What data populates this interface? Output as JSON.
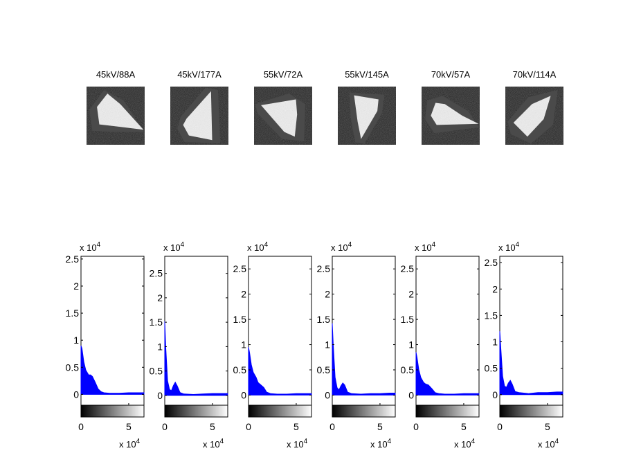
{
  "figure": {
    "panel_titles": [
      "45kV/88A",
      "45kV/177A",
      "55kV/72A",
      "55kV/145A",
      "70kV/57A",
      "70kV/114A"
    ],
    "images": [
      {
        "name": "ct-slice-45kv-88a",
        "polygon": [
          [
            0.18,
            0.35
          ],
          [
            0.36,
            0.12
          ],
          [
            0.58,
            0.3
          ],
          [
            0.98,
            0.74
          ],
          [
            0.48,
            0.68
          ],
          [
            0.22,
            0.65
          ]
        ],
        "halo": [
          [
            0.05,
            0.4
          ],
          [
            0.3,
            0.06
          ],
          [
            0.64,
            0.24
          ],
          [
            0.99,
            0.78
          ],
          [
            0.44,
            0.78
          ],
          [
            0.1,
            0.76
          ]
        ]
      },
      {
        "name": "ct-slice-45kv-177a",
        "polygon": [
          [
            0.28,
            0.55
          ],
          [
            0.7,
            0.08
          ],
          [
            0.72,
            0.92
          ],
          [
            0.32,
            0.84
          ],
          [
            0.22,
            0.66
          ]
        ],
        "halo": [
          [
            0.18,
            0.52
          ],
          [
            0.6,
            0.02
          ],
          [
            0.82,
            0.06
          ],
          [
            0.86,
            0.98
          ],
          [
            0.24,
            0.95
          ],
          [
            0.12,
            0.72
          ]
        ]
      },
      {
        "name": "ct-slice-55kv-72a",
        "polygon": [
          [
            0.12,
            0.32
          ],
          [
            0.72,
            0.22
          ],
          [
            0.74,
            0.48
          ],
          [
            0.7,
            0.86
          ],
          [
            0.52,
            0.78
          ]
        ],
        "halo": [
          [
            0.02,
            0.3
          ],
          [
            0.6,
            0.12
          ],
          [
            0.88,
            0.3
          ],
          [
            0.86,
            0.94
          ],
          [
            0.48,
            0.9
          ],
          [
            0.06,
            0.46
          ]
        ]
      },
      {
        "name": "ct-slice-55kv-145a",
        "polygon": [
          [
            0.28,
            0.15
          ],
          [
            0.7,
            0.22
          ],
          [
            0.68,
            0.42
          ],
          [
            0.4,
            0.9
          ],
          [
            0.34,
            0.6
          ]
        ],
        "halo": [
          [
            0.2,
            0.1
          ],
          [
            0.8,
            0.14
          ],
          [
            0.76,
            0.46
          ],
          [
            0.46,
            0.98
          ],
          [
            0.3,
            0.96
          ],
          [
            0.22,
            0.52
          ]
        ]
      },
      {
        "name": "ct-slice-70kv-57a",
        "polygon": [
          [
            0.24,
            0.28
          ],
          [
            0.4,
            0.3
          ],
          [
            0.7,
            0.5
          ],
          [
            0.98,
            0.64
          ],
          [
            0.26,
            0.66
          ],
          [
            0.16,
            0.5
          ]
        ],
        "halo": [
          [
            0.1,
            0.24
          ],
          [
            0.36,
            0.16
          ],
          [
            0.8,
            0.42
          ],
          [
            0.99,
            0.7
          ],
          [
            0.22,
            0.8
          ],
          [
            0.06,
            0.56
          ]
        ]
      },
      {
        "name": "ct-slice-70kv-114a",
        "polygon": [
          [
            0.14,
            0.62
          ],
          [
            0.46,
            0.3
          ],
          [
            0.78,
            0.16
          ],
          [
            0.66,
            0.56
          ],
          [
            0.38,
            0.86
          ]
        ],
        "halo": [
          [
            0.04,
            0.6
          ],
          [
            0.4,
            0.18
          ],
          [
            0.9,
            0.06
          ],
          [
            0.82,
            0.66
          ],
          [
            0.44,
            0.98
          ],
          [
            0.1,
            0.82
          ]
        ]
      }
    ]
  },
  "chart_data": {
    "type": "area",
    "x_exponent_label": "x 10",
    "y_exponent_label": "x 10",
    "exponent": "4",
    "xlim": [
      0,
      6.6
    ],
    "xticks": [
      0,
      5
    ],
    "color_series": "#0000ff",
    "colorbar": "grayscale black-to-white",
    "series": [
      {
        "title": "45kV/88A",
        "ylim": [
          -0.2,
          2.55
        ],
        "yticks": [
          0,
          0.5,
          1,
          1.5,
          2,
          2.5
        ],
        "x": [
          0,
          0.1,
          0.3,
          0.5,
          0.8,
          1.0,
          1.2,
          1.5,
          1.8,
          2.1,
          2.4,
          3.0,
          4,
          5,
          6,
          6.6
        ],
        "y": [
          0.9,
          0.85,
          0.6,
          0.45,
          0.36,
          0.36,
          0.33,
          0.22,
          0.1,
          0.05,
          0.03,
          0.02,
          0.02,
          0.03,
          0.03,
          0.03
        ]
      },
      {
        "title": "45kV/177A",
        "ylim": [
          -0.2,
          2.85
        ],
        "yticks": [
          0,
          0.5,
          1,
          1.5,
          2,
          2.5
        ],
        "x": [
          0,
          0.1,
          0.3,
          0.5,
          0.7,
          0.9,
          1.1,
          1.3,
          1.6,
          2.0,
          3,
          4,
          5,
          6,
          6.6
        ],
        "y": [
          1.52,
          1.0,
          0.3,
          0.12,
          0.1,
          0.2,
          0.27,
          0.2,
          0.06,
          0.03,
          0.02,
          0.03,
          0.04,
          0.04,
          0.04
        ]
      },
      {
        "title": "55kV/72A",
        "ylim": [
          -0.2,
          2.75
        ],
        "yticks": [
          0,
          0.5,
          1,
          1.5,
          2,
          2.5
        ],
        "x": [
          0,
          0.1,
          0.3,
          0.5,
          0.8,
          1.0,
          1.3,
          1.6,
          1.9,
          2.3,
          3,
          4,
          5,
          6,
          6.6
        ],
        "y": [
          0.95,
          0.85,
          0.6,
          0.45,
          0.35,
          0.25,
          0.2,
          0.15,
          0.06,
          0.03,
          0.02,
          0.02,
          0.03,
          0.03,
          0.03
        ]
      },
      {
        "title": "55kV/145A",
        "ylim": [
          -0.2,
          2.75
        ],
        "yticks": [
          0,
          0.5,
          1,
          1.5,
          2,
          2.5
        ],
        "x": [
          0,
          0.1,
          0.3,
          0.5,
          0.7,
          0.9,
          1.1,
          1.3,
          1.6,
          2.0,
          3,
          4,
          5,
          6,
          6.6
        ],
        "y": [
          1.42,
          1.0,
          0.35,
          0.15,
          0.1,
          0.18,
          0.24,
          0.2,
          0.06,
          0.03,
          0.02,
          0.03,
          0.03,
          0.04,
          0.04
        ]
      },
      {
        "title": "70kV/57A",
        "ylim": [
          -0.2,
          2.75
        ],
        "yticks": [
          0,
          0.5,
          1,
          1.5,
          2,
          2.5
        ],
        "x": [
          0,
          0.1,
          0.3,
          0.5,
          0.8,
          1.0,
          1.3,
          1.7,
          2.0,
          2.4,
          3,
          4,
          5,
          6,
          6.6
        ],
        "y": [
          0.85,
          0.75,
          0.5,
          0.35,
          0.25,
          0.22,
          0.2,
          0.12,
          0.05,
          0.03,
          0.02,
          0.02,
          0.03,
          0.03,
          0.03
        ]
      },
      {
        "title": "70kV/114A",
        "ylim": [
          -0.2,
          2.62
        ],
        "yticks": [
          0,
          0.5,
          1,
          1.5,
          2,
          2.5
        ],
        "x": [
          0,
          0.1,
          0.3,
          0.5,
          0.7,
          0.9,
          1.1,
          1.3,
          1.6,
          2.0,
          3,
          4,
          5,
          6,
          6.6
        ],
        "y": [
          1.2,
          0.9,
          0.35,
          0.16,
          0.14,
          0.22,
          0.27,
          0.2,
          0.06,
          0.04,
          0.02,
          0.04,
          0.04,
          0.05,
          0.05
        ]
      }
    ]
  }
}
